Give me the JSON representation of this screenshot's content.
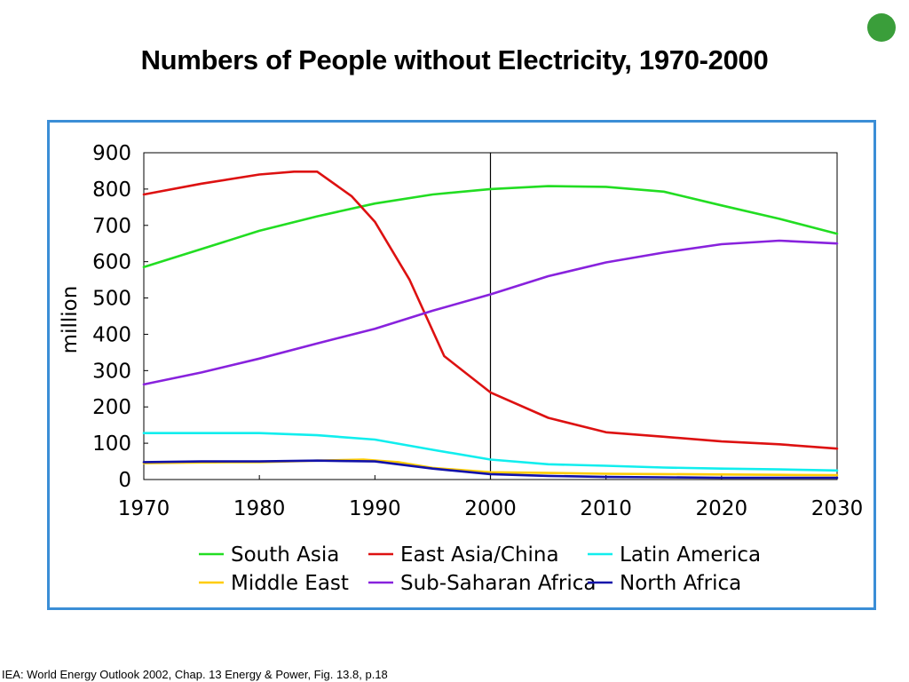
{
  "page": {
    "title": "Numbers of People without Electricity, 1970-2000",
    "source": "IEA: World Energy Outlook 2002, Chap. 13 Energy & Power, Fig. 13.8, p.18",
    "status_dot_color": "#3a9e3a",
    "frame_color": "#3b8ed6"
  },
  "chart_data": {
    "type": "line",
    "title": "",
    "xlabel": "",
    "ylabel": "million",
    "xlim": [
      1970,
      2030
    ],
    "ylim": [
      0,
      900
    ],
    "xticks": [
      1970,
      1980,
      1990,
      2000,
      2010,
      2020,
      2030
    ],
    "yticks": [
      0,
      100,
      200,
      300,
      400,
      500,
      600,
      700,
      800,
      900
    ],
    "reference_line_x": 2000,
    "grid": false,
    "legend_position": "bottom",
    "series": [
      {
        "name": "South Asia",
        "color": "#22dd22",
        "x": [
          1970,
          1975,
          1980,
          1985,
          1990,
          1995,
          2000,
          2005,
          2010,
          2015,
          2020,
          2025,
          2030
        ],
        "values": [
          585,
          635,
          685,
          725,
          760,
          785,
          800,
          808,
          806,
          793,
          755,
          718,
          677
        ]
      },
      {
        "name": "East Asia/China",
        "color": "#dd1111",
        "x": [
          1970,
          1975,
          1980,
          1983,
          1985,
          1988,
          1990,
          1993,
          1996,
          2000,
          2005,
          2010,
          2015,
          2020,
          2025,
          2030
        ],
        "values": [
          785,
          815,
          840,
          848,
          848,
          780,
          710,
          550,
          340,
          240,
          170,
          130,
          118,
          105,
          97,
          85
        ]
      },
      {
        "name": "Latin America",
        "color": "#11eeee",
        "x": [
          1970,
          1975,
          1980,
          1985,
          1990,
          1995,
          2000,
          2005,
          2010,
          2015,
          2020,
          2025,
          2030
        ],
        "values": [
          128,
          128,
          128,
          122,
          110,
          82,
          55,
          42,
          38,
          33,
          30,
          28,
          25
        ]
      },
      {
        "name": "Middle East",
        "color": "#ffcc00",
        "x": [
          1970,
          1975,
          1980,
          1985,
          1989,
          1992,
          1995,
          2000,
          2005,
          2010,
          2015,
          2020,
          2025,
          2030
        ],
        "values": [
          45,
          47,
          48,
          52,
          55,
          48,
          32,
          20,
          18,
          16,
          15,
          14,
          13,
          12
        ]
      },
      {
        "name": "Sub-Saharan Africa",
        "color": "#8822dd",
        "x": [
          1970,
          1975,
          1980,
          1985,
          1990,
          1995,
          2000,
          2005,
          2010,
          2015,
          2020,
          2025,
          2030
        ],
        "values": [
          262,
          295,
          333,
          375,
          415,
          465,
          510,
          560,
          598,
          625,
          648,
          658,
          650
        ]
      },
      {
        "name": "North Africa",
        "color": "#1111aa",
        "x": [
          1970,
          1975,
          1980,
          1985,
          1990,
          1995,
          2000,
          2005,
          2010,
          2015,
          2020,
          2025,
          2030
        ],
        "values": [
          48,
          50,
          50,
          52,
          50,
          30,
          15,
          10,
          7,
          6,
          5,
          5,
          5
        ]
      }
    ]
  }
}
